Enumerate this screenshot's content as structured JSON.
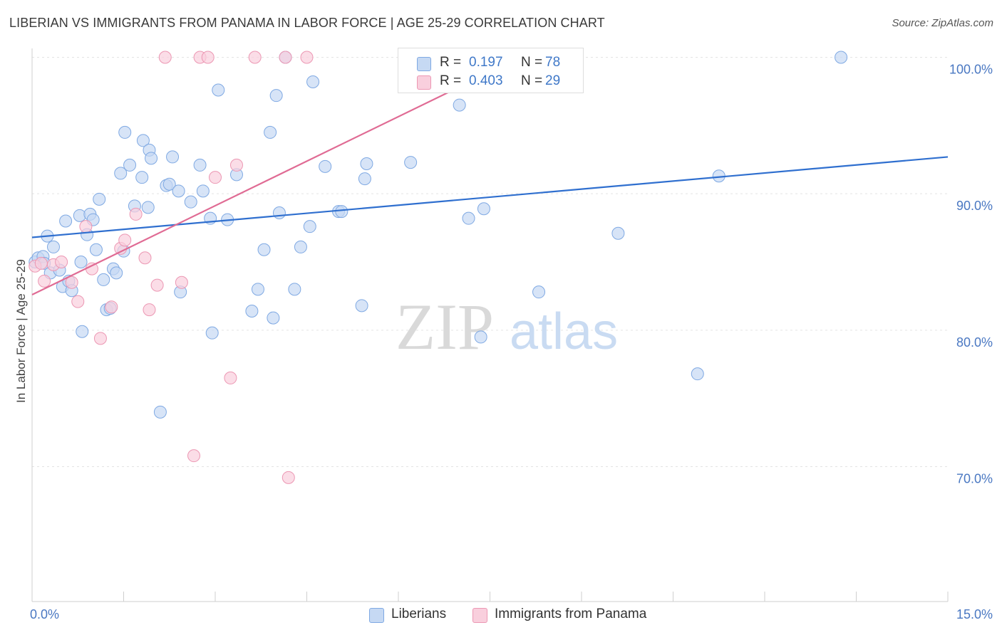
{
  "header": {
    "title": "LIBERIAN VS IMMIGRANTS FROM PANAMA IN LABOR FORCE | AGE 25-29 CORRELATION CHART",
    "source": "Source: ZipAtlas.com"
  },
  "watermark": {
    "zip": "ZIP",
    "atlas": "atlas"
  },
  "legend": {
    "rows": [
      {
        "r_label": "R =",
        "r_value": "0.197",
        "n_label": "N =",
        "n_value": "78"
      },
      {
        "r_label": "R =",
        "r_value": "0.403",
        "n_label": "N =",
        "n_value": "29"
      }
    ]
  },
  "chart_data": {
    "type": "scatter",
    "title": "LIBERIAN VS IMMIGRANTS FROM PANAMA IN LABOR FORCE | AGE 25-29 CORRELATION CHART",
    "xlabel": "",
    "ylabel": "In Labor Force | Age 25-29",
    "xlim": [
      0,
      15
    ],
    "ylim": [
      61.5,
      102
    ],
    "x_tick_labels": [
      {
        "value": 0,
        "label": "0.0%"
      },
      {
        "value": 15,
        "label": "15.0%"
      }
    ],
    "y_tick_labels": [
      {
        "value": 100,
        "label": "100.0%"
      },
      {
        "value": 90,
        "label": "90.0%"
      },
      {
        "value": 80,
        "label": "80.0%"
      },
      {
        "value": 70,
        "label": "70.0%"
      }
    ],
    "grid": true,
    "legend_position": "top-center",
    "series": [
      {
        "name": "Liberians",
        "color": "#7fa9e3",
        "fill": "#c6d9f3",
        "r": 0.197,
        "n": 78,
        "trend": {
          "x": [
            0,
            15
          ],
          "y": [
            86.8,
            92.7
          ]
        },
        "points": [
          [
            0.05,
            85.0
          ],
          [
            0.1,
            85.3
          ],
          [
            0.18,
            85.4
          ],
          [
            0.2,
            84.9
          ],
          [
            0.25,
            86.9
          ],
          [
            0.3,
            84.2
          ],
          [
            0.35,
            86.1
          ],
          [
            0.45,
            84.4
          ],
          [
            0.5,
            83.2
          ],
          [
            0.55,
            88.0
          ],
          [
            0.6,
            83.6
          ],
          [
            0.65,
            82.9
          ],
          [
            0.78,
            88.4
          ],
          [
            0.8,
            85.0
          ],
          [
            0.82,
            79.9
          ],
          [
            0.9,
            87.0
          ],
          [
            0.95,
            88.5
          ],
          [
            1.0,
            88.1
          ],
          [
            1.05,
            85.9
          ],
          [
            1.1,
            89.6
          ],
          [
            1.17,
            83.7
          ],
          [
            1.22,
            81.5
          ],
          [
            1.28,
            81.6
          ],
          [
            1.33,
            84.5
          ],
          [
            1.38,
            84.2
          ],
          [
            1.45,
            91.5
          ],
          [
            1.5,
            85.8
          ],
          [
            1.52,
            94.5
          ],
          [
            1.6,
            92.1
          ],
          [
            1.68,
            89.1
          ],
          [
            1.8,
            91.2
          ],
          [
            1.82,
            93.9
          ],
          [
            1.9,
            89.0
          ],
          [
            1.92,
            93.2
          ],
          [
            1.95,
            92.6
          ],
          [
            2.1,
            74.0
          ],
          [
            2.2,
            90.6
          ],
          [
            2.25,
            90.7
          ],
          [
            2.3,
            92.7
          ],
          [
            2.4,
            90.2
          ],
          [
            2.43,
            82.8
          ],
          [
            2.6,
            89.4
          ],
          [
            2.75,
            92.1
          ],
          [
            2.8,
            90.2
          ],
          [
            2.92,
            88.2
          ],
          [
            2.95,
            79.8
          ],
          [
            3.05,
            97.6
          ],
          [
            3.2,
            88.1
          ],
          [
            3.35,
            91.4
          ],
          [
            3.6,
            81.4
          ],
          [
            3.7,
            83.0
          ],
          [
            3.8,
            85.9
          ],
          [
            3.9,
            94.5
          ],
          [
            3.95,
            80.9
          ],
          [
            4.0,
            97.2
          ],
          [
            4.05,
            88.6
          ],
          [
            4.15,
            100.0
          ],
          [
            4.3,
            83.0
          ],
          [
            4.4,
            86.1
          ],
          [
            4.55,
            87.6
          ],
          [
            4.6,
            98.2
          ],
          [
            4.8,
            92.0
          ],
          [
            5.02,
            88.7
          ],
          [
            5.07,
            88.7
          ],
          [
            5.4,
            81.8
          ],
          [
            5.45,
            91.1
          ],
          [
            5.48,
            92.2
          ],
          [
            6.2,
            92.3
          ],
          [
            6.7,
            100.0
          ],
          [
            7.0,
            96.5
          ],
          [
            7.15,
            88.2
          ],
          [
            7.35,
            79.5
          ],
          [
            7.4,
            88.9
          ],
          [
            8.3,
            82.8
          ],
          [
            9.6,
            87.1
          ],
          [
            10.9,
            76.8
          ],
          [
            11.25,
            91.3
          ],
          [
            13.25,
            100.0
          ]
        ]
      },
      {
        "name": "Immigrants from Panama",
        "color": "#ec97b3",
        "fill": "#f9cfdd",
        "r": 0.403,
        "n": 29,
        "trend": {
          "x": [
            0,
            8.0
          ],
          "y": [
            82.6,
            100.0
          ]
        },
        "points": [
          [
            0.05,
            84.7
          ],
          [
            0.15,
            84.9
          ],
          [
            0.2,
            83.6
          ],
          [
            0.35,
            84.8
          ],
          [
            0.48,
            85.0
          ],
          [
            0.65,
            83.5
          ],
          [
            0.75,
            82.1
          ],
          [
            0.88,
            87.6
          ],
          [
            0.98,
            84.5
          ],
          [
            1.12,
            79.4
          ],
          [
            1.3,
            81.7
          ],
          [
            1.45,
            86.0
          ],
          [
            1.52,
            86.6
          ],
          [
            1.7,
            88.5
          ],
          [
            1.85,
            85.3
          ],
          [
            1.92,
            81.5
          ],
          [
            2.05,
            83.3
          ],
          [
            2.18,
            100.0
          ],
          [
            2.45,
            83.5
          ],
          [
            2.65,
            70.8
          ],
          [
            2.75,
            100.0
          ],
          [
            2.88,
            100.0
          ],
          [
            3.0,
            91.2
          ],
          [
            3.25,
            76.5
          ],
          [
            3.35,
            92.1
          ],
          [
            3.65,
            100.0
          ],
          [
            4.15,
            100.0
          ],
          [
            4.2,
            69.2
          ],
          [
            4.5,
            100.0
          ]
        ]
      }
    ]
  }
}
